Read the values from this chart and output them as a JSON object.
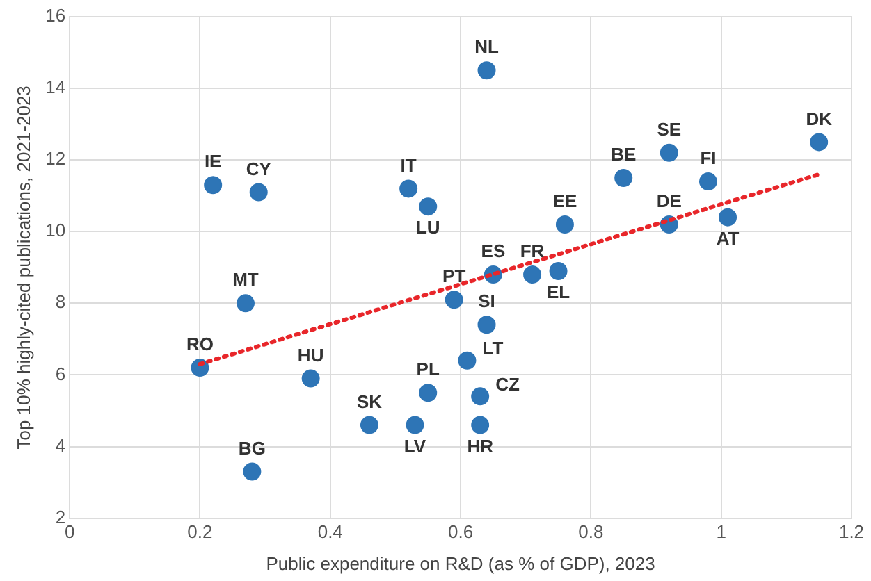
{
  "chart_data": {
    "type": "scatter",
    "xlabel": "Public expenditure on R&D (as % of GDP), 2023",
    "ylabel": "Top 10% highly-cited publications, 2021-2023",
    "xlim": [
      0,
      1.2
    ],
    "xticks": [
      0,
      0.2,
      0.4,
      0.6,
      0.8,
      1,
      1.2
    ],
    "ylim": [
      2,
      16
    ],
    "yticks": [
      2,
      4,
      6,
      8,
      10,
      12,
      14,
      16
    ],
    "grid": true,
    "legend": false,
    "marker": "circle",
    "series": [
      {
        "color": "#2e75b6",
        "x": [
          0.64,
          0.22,
          0.29,
          0.52,
          0.55,
          0.27,
          0.59,
          0.2,
          0.37,
          0.55,
          0.46,
          0.53,
          0.28,
          0.61,
          0.64,
          0.63,
          0.63,
          0.65,
          0.71,
          0.76,
          0.75,
          0.85,
          0.92,
          0.98,
          0.92,
          1.01,
          1.15
        ],
        "values": [
          14.5,
          11.3,
          11.1,
          11.2,
          10.7,
          8,
          8.1,
          6.2,
          5.9,
          5.5,
          4.6,
          4.6,
          3.3,
          6.4,
          7.4,
          5.4,
          4.6,
          8.8,
          8.8,
          10.2,
          8.9,
          11.5,
          12.2,
          11.4,
          10.2,
          10.4,
          12.5
        ]
      },
      {
        "type": "line",
        "color": "#e8262a",
        "line_style": "dotted",
        "marker": "none",
        "x": [
          0.2,
          1.15
        ],
        "values": [
          6.3,
          11.6
        ]
      }
    ],
    "annotations": [
      {
        "text": "NL",
        "x": 0.64,
        "y": 14.5
      },
      {
        "text": "IE",
        "x": 0.22,
        "y": 11.3
      },
      {
        "text": "CY",
        "x": 0.29,
        "y": 11.1
      },
      {
        "text": "IT",
        "x": 0.52,
        "y": 11.2
      },
      {
        "text": "LU",
        "x": 0.55,
        "y": 10.7
      },
      {
        "text": "MT",
        "x": 0.27,
        "y": 8
      },
      {
        "text": "PT",
        "x": 0.59,
        "y": 8.1
      },
      {
        "text": "RO",
        "x": 0.2,
        "y": 6.2
      },
      {
        "text": "HU",
        "x": 0.37,
        "y": 5.9
      },
      {
        "text": "PL",
        "x": 0.55,
        "y": 5.5
      },
      {
        "text": "SK",
        "x": 0.46,
        "y": 4.6
      },
      {
        "text": "LV",
        "x": 0.53,
        "y": 4.6
      },
      {
        "text": "BG",
        "x": 0.28,
        "y": 3.3
      },
      {
        "text": "LT",
        "x": 0.61,
        "y": 6.4
      },
      {
        "text": "SI",
        "x": 0.64,
        "y": 7.4
      },
      {
        "text": "CZ",
        "x": 0.63,
        "y": 5.4
      },
      {
        "text": "HR",
        "x": 0.63,
        "y": 4.6
      },
      {
        "text": "ES",
        "x": 0.65,
        "y": 8.8
      },
      {
        "text": "FR",
        "x": 0.71,
        "y": 8.8
      },
      {
        "text": "EE",
        "x": 0.76,
        "y": 10.2
      },
      {
        "text": "EL",
        "x": 0.75,
        "y": 8.9
      },
      {
        "text": "BE",
        "x": 0.85,
        "y": 11.5
      },
      {
        "text": "SE",
        "x": 0.92,
        "y": 12.2
      },
      {
        "text": "FI",
        "x": 0.98,
        "y": 11.4
      },
      {
        "text": "DE",
        "x": 0.92,
        "y": 10.2
      },
      {
        "text": "AT",
        "x": 1.01,
        "y": 10.4
      },
      {
        "text": "DK",
        "x": 1.15,
        "y": 12.5
      }
    ]
  }
}
